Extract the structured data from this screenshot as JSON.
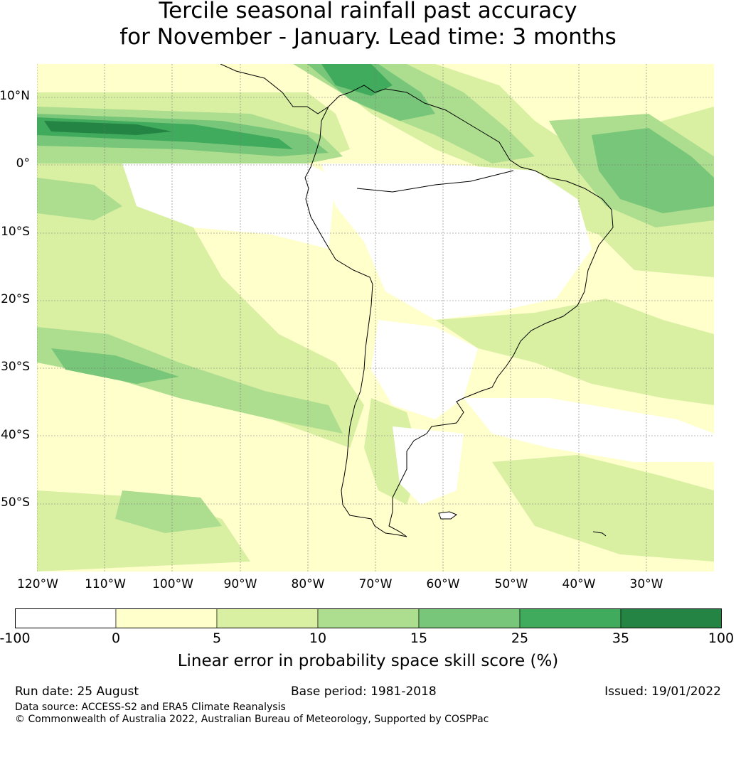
{
  "title": {
    "line1": "Tercile seasonal rainfall past accuracy",
    "line2": "for November - January. Lead time: 3 months"
  },
  "map": {
    "lat_labels": [
      "10°N",
      "0°",
      "10°S",
      "20°S",
      "30°S",
      "40°S",
      "50°S"
    ],
    "lon_labels": [
      "120°W",
      "110°W",
      "100°W",
      "90°W",
      "80°W",
      "70°W",
      "60°W",
      "50°W",
      "40°W",
      "30°W"
    ]
  },
  "colorbar": {
    "ticks": [
      "-100",
      "0",
      "5",
      "10",
      "15",
      "25",
      "35",
      "100"
    ],
    "colors": [
      "#ffffff",
      "#ffffcc",
      "#d9f0a3",
      "#addd8e",
      "#78c679",
      "#41ab5d",
      "#238443"
    ],
    "label": "Linear error in probability space skill score (%)"
  },
  "footer": {
    "run_date": "Run date: 25 August",
    "base_period": "Base period: 1981-2018",
    "issued": "Issued: 19/01/2022",
    "data_source": "Data source: ACCESS-S2 and ERA5 Climate Reanalysis",
    "copyright": "© Commonwealth of Australia 2022, Australian Bureau of Meteorology, Supported by COSPPac"
  }
}
